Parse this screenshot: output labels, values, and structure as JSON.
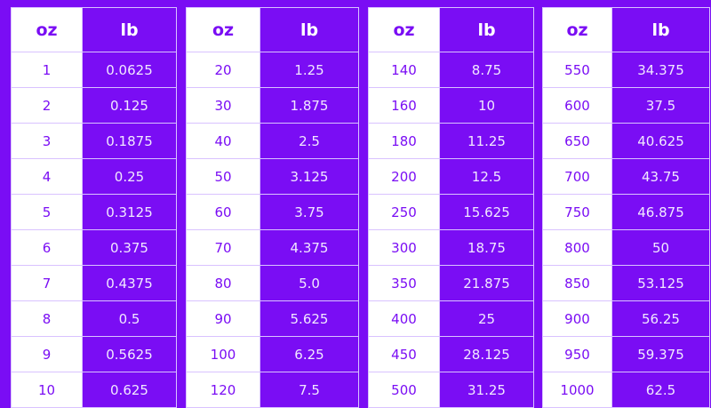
{
  "headers": {
    "oz": "oz",
    "lb": "lb"
  },
  "colors": {
    "background": "#7a0df4",
    "oz_cell": "#ffffff",
    "border": "#d9c2ff"
  },
  "tables": [
    {
      "rows": [
        [
          "1",
          "0.0625"
        ],
        [
          "2",
          "0.125"
        ],
        [
          "3",
          "0.1875"
        ],
        [
          "4",
          "0.25"
        ],
        [
          "5",
          "0.3125"
        ],
        [
          "6",
          "0.375"
        ],
        [
          "7",
          "0.4375"
        ],
        [
          "8",
          "0.5"
        ],
        [
          "9",
          "0.5625"
        ],
        [
          "10",
          "0.625"
        ]
      ]
    },
    {
      "rows": [
        [
          "20",
          "1.25"
        ],
        [
          "30",
          "1.875"
        ],
        [
          "40",
          "2.5"
        ],
        [
          "50",
          "3.125"
        ],
        [
          "60",
          "3.75"
        ],
        [
          "70",
          "4.375"
        ],
        [
          "80",
          "5.0"
        ],
        [
          "90",
          "5.625"
        ],
        [
          "100",
          "6.25"
        ],
        [
          "120",
          "7.5"
        ]
      ]
    },
    {
      "rows": [
        [
          "140",
          "8.75"
        ],
        [
          "160",
          "10"
        ],
        [
          "180",
          "11.25"
        ],
        [
          "200",
          "12.5"
        ],
        [
          "250",
          "15.625"
        ],
        [
          "300",
          "18.75"
        ],
        [
          "350",
          "21.875"
        ],
        [
          "400",
          "25"
        ],
        [
          "450",
          "28.125"
        ],
        [
          "500",
          "31.25"
        ]
      ]
    },
    {
      "rows": [
        [
          "550",
          "34.375"
        ],
        [
          "600",
          "37.5"
        ],
        [
          "650",
          "40.625"
        ],
        [
          "700",
          "43.75"
        ],
        [
          "750",
          "46.875"
        ],
        [
          "800",
          "50"
        ],
        [
          "850",
          "53.125"
        ],
        [
          "900",
          "56.25"
        ],
        [
          "950",
          "59.375"
        ],
        [
          "1000",
          "62.5"
        ]
      ]
    }
  ]
}
